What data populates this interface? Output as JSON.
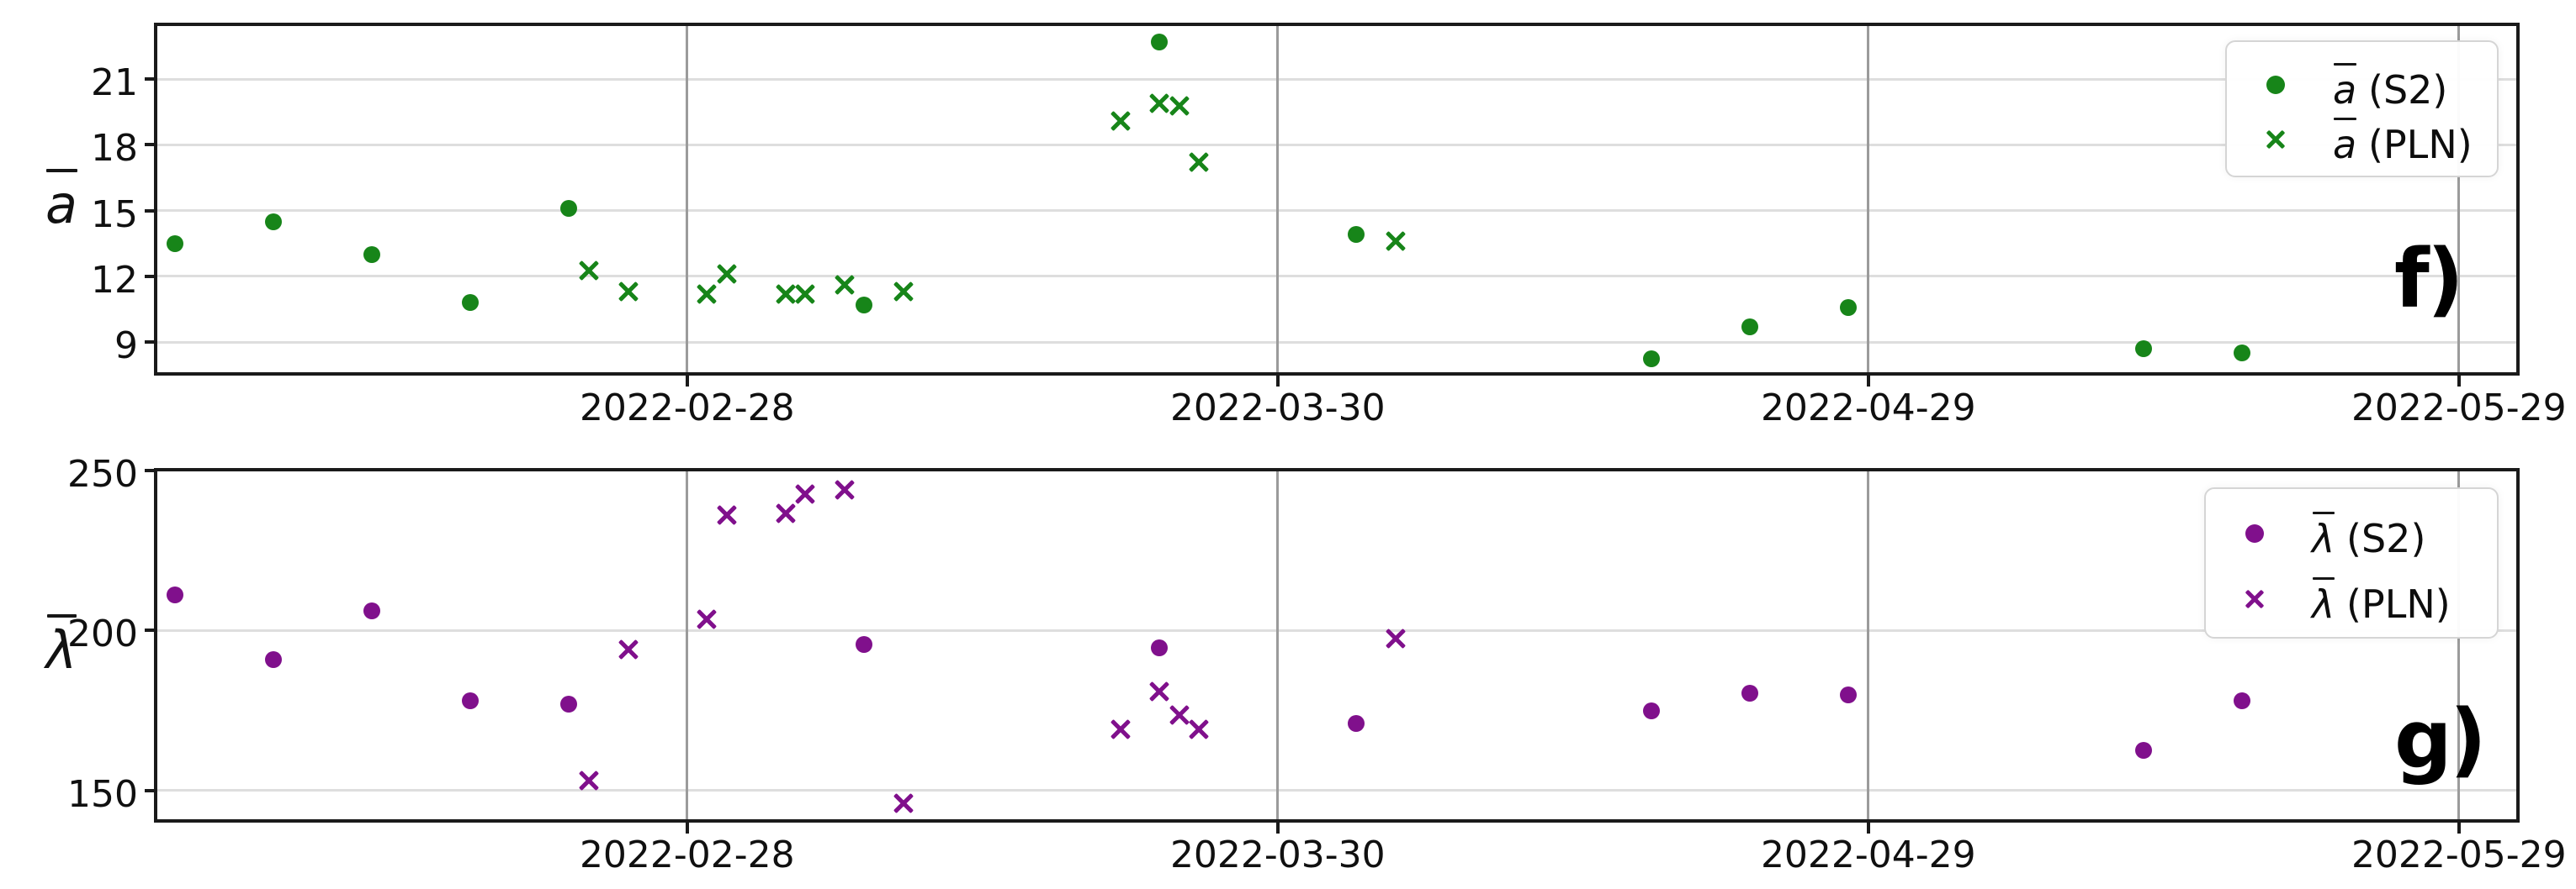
{
  "chart_data": [
    {
      "type": "scatter",
      "panel_label": "f)",
      "title": "",
      "xlabel": "",
      "ylabel": "ā",
      "ylabel_symbol": "a",
      "grid": true,
      "legend_position": "upper-right",
      "x_axis": {
        "type": "date",
        "min": "2022-02-01",
        "max": "2022-06-01",
        "tick_labels": [
          "2022-02-28",
          "2022-03-30",
          "2022-04-29",
          "2022-05-29"
        ]
      },
      "y_axis": {
        "min": 7.55,
        "max": 23.5,
        "tick_labels": [
          9,
          12,
          15,
          18,
          21
        ]
      },
      "series": [
        {
          "name": "ā (S2)",
          "symbol": "a",
          "label_suffix": "(S2)",
          "marker": "circle",
          "color": "#178519",
          "points": [
            [
              "2022-02-02",
              13.5
            ],
            [
              "2022-02-07",
              14.5
            ],
            [
              "2022-02-12",
              13.0
            ],
            [
              "2022-02-17",
              10.8
            ],
            [
              "2022-02-22",
              15.1
            ],
            [
              "2022-03-09",
              10.7
            ],
            [
              "2022-03-24",
              22.7
            ],
            [
              "2022-04-03",
              13.9
            ],
            [
              "2022-04-18",
              8.25
            ],
            [
              "2022-04-23",
              9.7
            ],
            [
              "2022-04-28",
              10.6
            ],
            [
              "2022-05-13",
              8.7
            ],
            [
              "2022-05-18",
              8.5
            ]
          ]
        },
        {
          "name": "ā (PLN)",
          "symbol": "a",
          "label_suffix": "(PLN)",
          "marker": "x",
          "color": "#178519",
          "points": [
            [
              "2022-02-23",
              12.25
            ],
            [
              "2022-02-25",
              11.3
            ],
            [
              "2022-03-01",
              11.2
            ],
            [
              "2022-03-02",
              12.1
            ],
            [
              "2022-03-05",
              11.2
            ],
            [
              "2022-03-06",
              11.2
            ],
            [
              "2022-03-08",
              11.6
            ],
            [
              "2022-03-11",
              11.3
            ],
            [
              "2022-03-22",
              19.1
            ],
            [
              "2022-03-24",
              19.9
            ],
            [
              "2022-03-25",
              19.8
            ],
            [
              "2022-03-26",
              17.2
            ],
            [
              "2022-04-05",
              13.6
            ]
          ]
        }
      ]
    },
    {
      "type": "scatter",
      "panel_label": "g)",
      "title": "",
      "xlabel": "",
      "ylabel": "λ̄",
      "ylabel_symbol": "λ",
      "grid": true,
      "legend_position": "upper-right",
      "x_axis": {
        "type": "date",
        "min": "2022-02-01",
        "max": "2022-06-01",
        "tick_labels": [
          "2022-02-28",
          "2022-03-30",
          "2022-04-29",
          "2022-05-29"
        ]
      },
      "y_axis": {
        "min": 140.5,
        "max": 250.2,
        "tick_labels": [
          150,
          200,
          250
        ]
      },
      "series": [
        {
          "name": "λ̄ (S2)",
          "symbol": "λ",
          "label_suffix": "(S2)",
          "marker": "circle",
          "color": "#80108c",
          "points": [
            [
              "2022-02-02",
              211
            ],
            [
              "2022-02-07",
              191
            ],
            [
              "2022-02-12",
              206
            ],
            [
              "2022-02-17",
              178
            ],
            [
              "2022-02-22",
              177
            ],
            [
              "2022-03-09",
              195.5
            ],
            [
              "2022-03-24",
              194.5
            ],
            [
              "2022-04-03",
              171
            ],
            [
              "2022-04-18",
              175
            ],
            [
              "2022-04-23",
              180.5
            ],
            [
              "2022-04-28",
              180
            ],
            [
              "2022-05-13",
              162.5
            ],
            [
              "2022-05-18",
              178
            ]
          ]
        },
        {
          "name": "λ̄ (PLN)",
          "symbol": "λ",
          "label_suffix": "(PLN)",
          "marker": "x",
          "color": "#80108c",
          "points": [
            [
              "2022-02-23",
              153
            ],
            [
              "2022-02-25",
              194
            ],
            [
              "2022-03-01",
              203.5
            ],
            [
              "2022-03-02",
              236
            ],
            [
              "2022-03-05",
              236.5
            ],
            [
              "2022-03-06",
              242.5
            ],
            [
              "2022-03-08",
              244
            ],
            [
              "2022-03-11",
              146
            ],
            [
              "2022-03-22",
              169
            ],
            [
              "2022-03-24",
              181
            ],
            [
              "2022-03-25",
              173.5
            ],
            [
              "2022-03-26",
              169
            ],
            [
              "2022-04-05",
              197.5
            ]
          ]
        }
      ]
    }
  ]
}
